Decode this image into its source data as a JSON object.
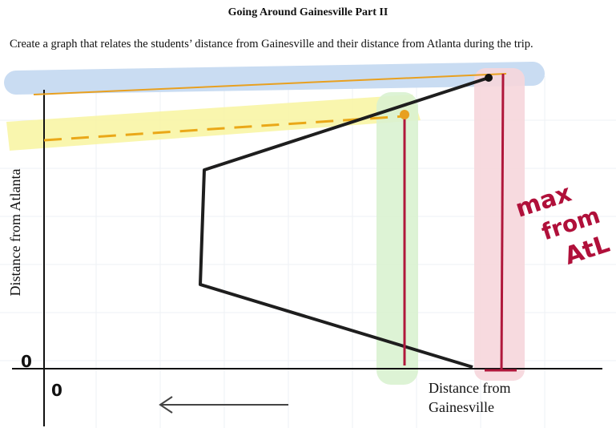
{
  "header": {
    "title": "Going Around Gainesville Part II"
  },
  "instructions": "Create a graph that relates the students’ distance from Gainesville and their distance from Atlanta during the trip.",
  "graph": {
    "y_axis_label": "Distance from Atlanta",
    "x_axis_label": [
      "Distance from",
      "Gainesville"
    ],
    "y_origin_mark": "0",
    "x_origin_mark": "0",
    "annotation": [
      "max",
      "from",
      "AtL"
    ]
  }
}
